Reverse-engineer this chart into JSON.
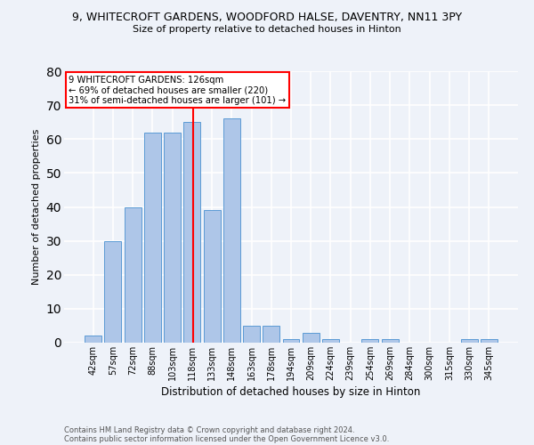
{
  "title": "9, WHITECROFT GARDENS, WOODFORD HALSE, DAVENTRY, NN11 3PY",
  "subtitle": "Size of property relative to detached houses in Hinton",
  "xlabel": "Distribution of detached houses by size in Hinton",
  "ylabel": "Number of detached properties",
  "footnote1": "Contains HM Land Registry data © Crown copyright and database right 2024.",
  "footnote2": "Contains public sector information licensed under the Open Government Licence v3.0.",
  "categories": [
    "42sqm",
    "57sqm",
    "72sqm",
    "88sqm",
    "103sqm",
    "118sqm",
    "133sqm",
    "148sqm",
    "163sqm",
    "178sqm",
    "194sqm",
    "209sqm",
    "224sqm",
    "239sqm",
    "254sqm",
    "269sqm",
    "284sqm",
    "300sqm",
    "315sqm",
    "330sqm",
    "345sqm"
  ],
  "values": [
    2,
    30,
    40,
    62,
    62,
    65,
    39,
    66,
    5,
    5,
    1,
    3,
    1,
    0,
    1,
    1,
    0,
    0,
    0,
    1,
    1
  ],
  "bar_color": "#aec6e8",
  "bar_edge_color": "#5b9bd5",
  "ref_line_color": "red",
  "annotation_text": "9 WHITECROFT GARDENS: 126sqm\n← 69% of detached houses are smaller (220)\n31% of semi-detached houses are larger (101) →",
  "annotation_box_color": "white",
  "annotation_box_edge": "red",
  "ylim": [
    0,
    80
  ],
  "yticks": [
    0,
    10,
    20,
    30,
    40,
    50,
    60,
    70,
    80
  ],
  "bg_color": "#eef2f9",
  "plot_bg_color": "#eef2f9",
  "grid_color": "white"
}
